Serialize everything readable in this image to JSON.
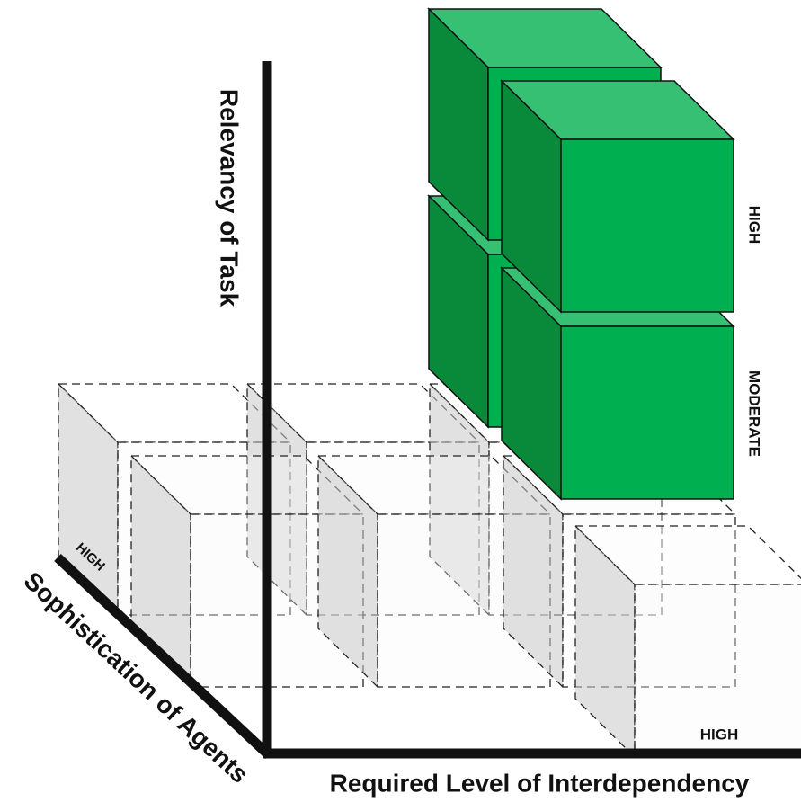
{
  "axes": {
    "vertical": {
      "title": "Relevancy of Task",
      "levels": [
        "HIGH",
        "MODERATE"
      ]
    },
    "diagonal": {
      "title": "Sophistication of Agents",
      "levels": [
        "HIGH"
      ]
    },
    "horizontal": {
      "title": "Required Level of Interdependency",
      "levels": [
        "HIGH"
      ]
    }
  }
}
